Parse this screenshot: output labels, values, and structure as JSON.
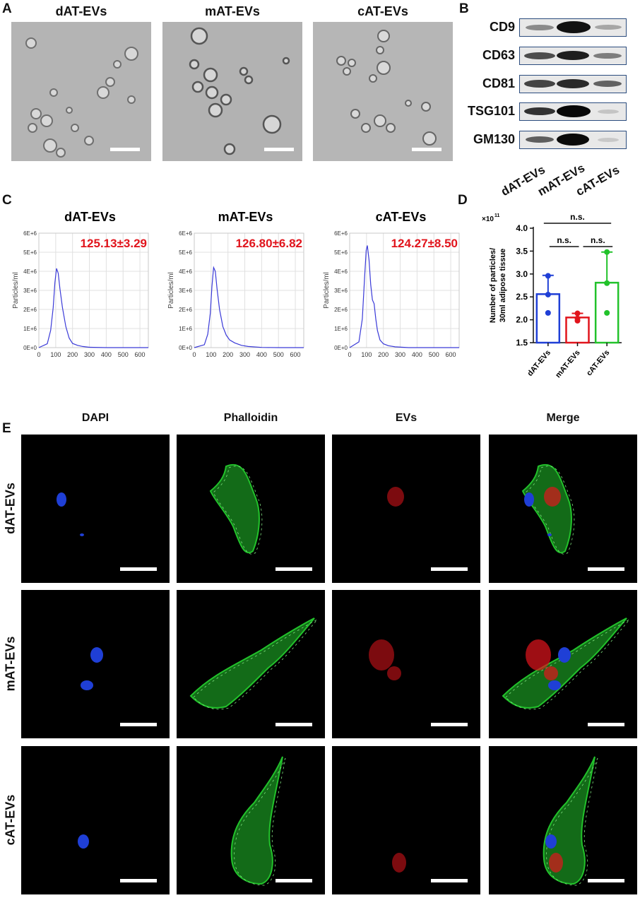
{
  "panels": {
    "a": "A",
    "b": "B",
    "c": "C",
    "d": "D",
    "e": "E"
  },
  "groups": [
    "dAT-EVs",
    "mAT-EVs",
    "cAT-EVs"
  ],
  "panel_b": {
    "markers": [
      "CD9",
      "CD63",
      "CD81",
      "TSG101",
      "GM130"
    ]
  },
  "panel_c": {
    "means": [
      "125.13±3.29",
      "126.80±6.82",
      "124.27±8.50"
    ],
    "ylabel": "Particles/ml"
  },
  "panel_e": {
    "channels": [
      "DAPI",
      "Phalloidin",
      "EVs",
      "Merge"
    ]
  },
  "colors": {
    "blue": "#1f3fd6",
    "red": "#e1141c",
    "green": "#22c22b",
    "nta_line": "#3a3ad8"
  },
  "chart_data": [
    {
      "type": "line",
      "title": "dAT-EVs",
      "ylabel": "Particles/ml",
      "xlim": [
        0,
        650
      ],
      "ylim": [
        0,
        6000000
      ],
      "xticks": [
        0,
        100,
        200,
        300,
        400,
        500,
        600
      ],
      "yticks": [
        "0E+0",
        "1E+6",
        "2E+6",
        "3E+6",
        "4E+6",
        "5E+6",
        "6E+6"
      ],
      "annotation": "125.13±3.29",
      "x": [
        0,
        50,
        70,
        85,
        95,
        105,
        115,
        125,
        140,
        160,
        180,
        200,
        230,
        260,
        300,
        400,
        500,
        650
      ],
      "y": [
        0,
        200000,
        900000,
        2100000,
        3400000,
        4150000,
        3900000,
        3100000,
        2100000,
        1100000,
        500000,
        220000,
        120000,
        60000,
        20000,
        0,
        0,
        0
      ]
    },
    {
      "type": "line",
      "title": "mAT-EVs",
      "ylabel": "Particles/ml",
      "xlim": [
        0,
        650
      ],
      "ylim": [
        0,
        6000000
      ],
      "xticks": [
        0,
        100,
        200,
        300,
        400,
        500,
        600
      ],
      "yticks": [
        "0E+0",
        "1E+6",
        "2E+6",
        "3E+6",
        "4E+6",
        "5E+6",
        "6E+6"
      ],
      "annotation": "126.80±6.82",
      "x": [
        0,
        60,
        80,
        95,
        105,
        115,
        125,
        135,
        150,
        170,
        190,
        210,
        240,
        280,
        320,
        400,
        500,
        650
      ],
      "y": [
        0,
        150000,
        700000,
        1800000,
        3200000,
        4200000,
        4000000,
        3100000,
        2000000,
        1100000,
        650000,
        400000,
        250000,
        120000,
        60000,
        10000,
        0,
        0
      ]
    },
    {
      "type": "line",
      "title": "cAT-EVs",
      "ylabel": "Particles/ml",
      "xlim": [
        0,
        650
      ],
      "ylim": [
        0,
        6000000
      ],
      "xticks": [
        0,
        100,
        200,
        300,
        400,
        500,
        600
      ],
      "yticks": [
        "0E+0",
        "1E+6",
        "2E+6",
        "3E+6",
        "4E+6",
        "5E+6",
        "6E+6"
      ],
      "annotation": "124.27±8.50",
      "x": [
        0,
        55,
        75,
        88,
        98,
        105,
        115,
        125,
        135,
        145,
        155,
        165,
        180,
        200,
        230,
        270,
        350,
        650
      ],
      "y": [
        0,
        300000,
        1500000,
        3600000,
        5100000,
        5350000,
        4600000,
        3300000,
        2500000,
        2300000,
        1500000,
        900000,
        400000,
        200000,
        100000,
        40000,
        0,
        0
      ]
    },
    {
      "type": "bar",
      "ylabel_line1": "Number of particles/",
      "ylabel_line2": "30ml adipose tissue",
      "y_multiplier": "×10",
      "y_multiplier_exp": "11",
      "ylim": [
        1.5,
        4.0
      ],
      "yticks": [
        "1.5",
        "2.0",
        "2.5",
        "3.0",
        "3.5",
        "4.0"
      ],
      "categories": [
        "dAT-EVs",
        "mAT-EVs",
        "cAT-EVs"
      ],
      "values": [
        2.56,
        2.05,
        2.81
      ],
      "errors": [
        0.41,
        0.09,
        0.67
      ],
      "points": [
        [
          2.15,
          2.55,
          2.96
        ],
        [
          1.98,
          2.03,
          2.14
        ],
        [
          2.15,
          2.8,
          3.48
        ]
      ],
      "bar_colors": [
        "#1f3fd6",
        "#e1141c",
        "#22c22b"
      ],
      "comparisons": [
        "n.s.",
        "n.s.",
        "n.s."
      ]
    }
  ]
}
